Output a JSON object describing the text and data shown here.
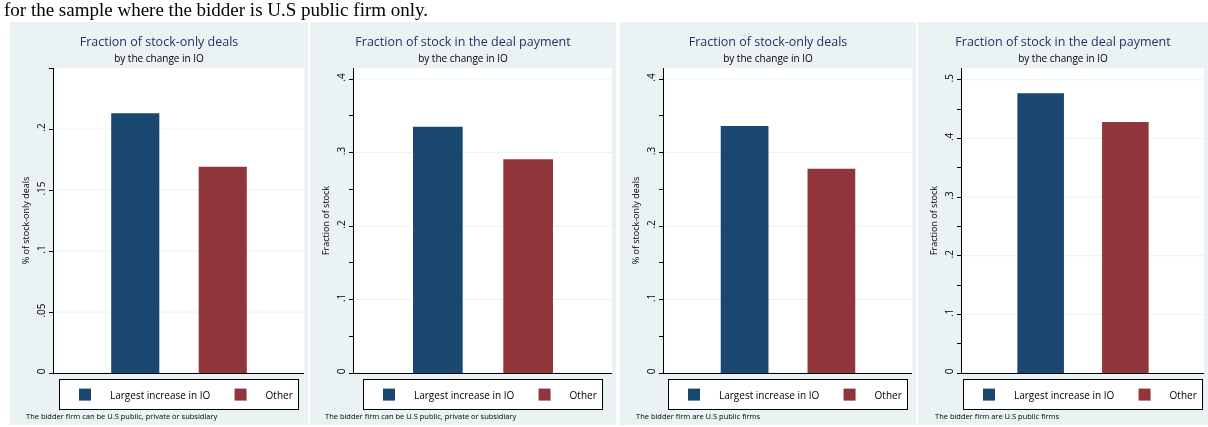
{
  "chart_data": [
    {
      "type": "bar",
      "title": "Fraction of stock-only deals",
      "subtitle": "by the change in IO",
      "ylabel": "% of stock-only deals",
      "categories": [
        null
      ],
      "series": [
        {
          "name": "Largest increase in IO",
          "color": "#1a476f",
          "values": [
            0.213
          ]
        },
        {
          "name": "Other",
          "color": "#90353b",
          "values": [
            0.169
          ]
        }
      ],
      "ylim": [
        0,
        0.25
      ],
      "yticks": [
        {
          "value": 0,
          "label": "0"
        },
        {
          "value": 0.05,
          "label": ".05"
        },
        {
          "value": 0.1,
          "label": ".1"
        },
        {
          "value": 0.15,
          "label": ".15"
        },
        {
          "value": 0.2,
          "label": ".2"
        },
        {
          "value": 0.25,
          "label": null
        }
      ],
      "grid": "y",
      "legend": "bottom",
      "tick_labels": "y",
      "annotations": [
        "for the sample where the bidder is U.S public firm only.",
        "The bidder firm can be U.S public, private or subsidiary"
      ]
    },
    {
      "type": "bar",
      "title": "Fraction of stock in the deal payment",
      "subtitle": "by the change in IO",
      "ylabel": "Fraction of stock",
      "categories": [
        null
      ],
      "series": [
        {
          "name": "Largest increase in IO",
          "color": "#1a476f",
          "values": [
            0.335
          ]
        },
        {
          "name": "Other",
          "color": "#90353b",
          "values": [
            0.291
          ]
        }
      ],
      "ylim": [
        0,
        0.415
      ],
      "yticks": [
        {
          "value": 0,
          "label": "0"
        },
        {
          "value": 0.05,
          "label": null
        },
        {
          "value": 0.1,
          "label": ".1"
        },
        {
          "value": 0.15,
          "label": null
        },
        {
          "value": 0.2,
          "label": ".2"
        },
        {
          "value": 0.25,
          "label": null
        },
        {
          "value": 0.3,
          "label": ".3"
        },
        {
          "value": 0.35,
          "label": null
        },
        {
          "value": 0.4,
          "label": ".4"
        }
      ],
      "grid": "y",
      "legend": "bottom",
      "tick_labels": "y",
      "annotations": [
        "The bidder firm can be U.S public, private or subsidiary"
      ]
    },
    {
      "type": "bar",
      "title": "Fraction of stock-only deals",
      "subtitle": "by the change in IO",
      "ylabel": "% of stock-only deals",
      "categories": [
        null
      ],
      "series": [
        {
          "name": "Largest increase in IO",
          "color": "#1a476f",
          "values": [
            0.336
          ]
        },
        {
          "name": "Other",
          "color": "#90353b",
          "values": [
            0.278
          ]
        }
      ],
      "ylim": [
        0,
        0.415
      ],
      "yticks": [
        {
          "value": 0,
          "label": "0"
        },
        {
          "value": 0.05,
          "label": null
        },
        {
          "value": 0.1,
          "label": ".1"
        },
        {
          "value": 0.15,
          "label": null
        },
        {
          "value": 0.2,
          "label": ".2"
        },
        {
          "value": 0.25,
          "label": null
        },
        {
          "value": 0.3,
          "label": ".3"
        },
        {
          "value": 0.35,
          "label": null
        },
        {
          "value": 0.4,
          "label": ".4"
        }
      ],
      "grid": "y",
      "legend": "bottom",
      "tick_labels": "y",
      "annotations": [
        "The bidder firm are U.S public firms"
      ]
    },
    {
      "type": "bar",
      "title": "Fraction of stock in the deal payment",
      "subtitle": "by the change in IO",
      "ylabel": "Fraction of stock",
      "categories": [
        null
      ],
      "series": [
        {
          "name": "Largest increase in IO",
          "color": "#1a476f",
          "values": [
            0.477
          ]
        },
        {
          "name": "Other",
          "color": "#90353b",
          "values": [
            0.428
          ]
        }
      ],
      "ylim": [
        0,
        0.52
      ],
      "yticks": [
        {
          "value": 0,
          "label": "0"
        },
        {
          "value": 0.05,
          "label": null
        },
        {
          "value": 0.1,
          "label": ".1"
        },
        {
          "value": 0.15,
          "label": null
        },
        {
          "value": 0.2,
          "label": ".2"
        },
        {
          "value": 0.25,
          "label": null
        },
        {
          "value": 0.3,
          "label": ".3"
        },
        {
          "value": 0.35,
          "label": null
        },
        {
          "value": 0.4,
          "label": ".4"
        },
        {
          "value": 0.45,
          "label": null
        },
        {
          "value": 0.5,
          "label": ".5"
        }
      ],
      "grid": "y",
      "legend": "bottom",
      "tick_labels": "y",
      "annotations": [
        "The bidder firm are U.S public firms"
      ]
    }
  ]
}
